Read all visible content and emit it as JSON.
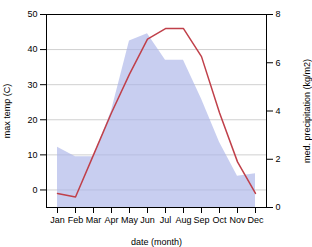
{
  "chart_data": {
    "type": "line",
    "categories": [
      "Jan",
      "Feb",
      "Mar",
      "Apr",
      "May",
      "Jun",
      "Jul",
      "Aug",
      "Sep",
      "Oct",
      "Nov",
      "Dec"
    ],
    "xlabel": "date (month)",
    "ylabel": "max temp (C)",
    "y2label": "med. precipitation (kg/m2)",
    "ylim": [
      -5,
      50
    ],
    "yticks": [
      0,
      10,
      20,
      30,
      40,
      50
    ],
    "y2lim": [
      0,
      8
    ],
    "y2ticks": [
      0,
      2,
      4,
      6,
      8
    ],
    "grid": true,
    "series": [
      {
        "type": "area",
        "axis": "y2",
        "color": "#aab4e8",
        "values": [
          2.5,
          2.1,
          2.1,
          4.0,
          6.9,
          7.2,
          6.1,
          6.1,
          4.5,
          2.7,
          1.3,
          1.4
        ]
      },
      {
        "type": "line",
        "color": "#c0404a",
        "values": [
          -1,
          -2,
          10,
          22,
          33,
          43,
          46,
          46,
          38,
          22,
          8,
          -1
        ]
      }
    ]
  }
}
